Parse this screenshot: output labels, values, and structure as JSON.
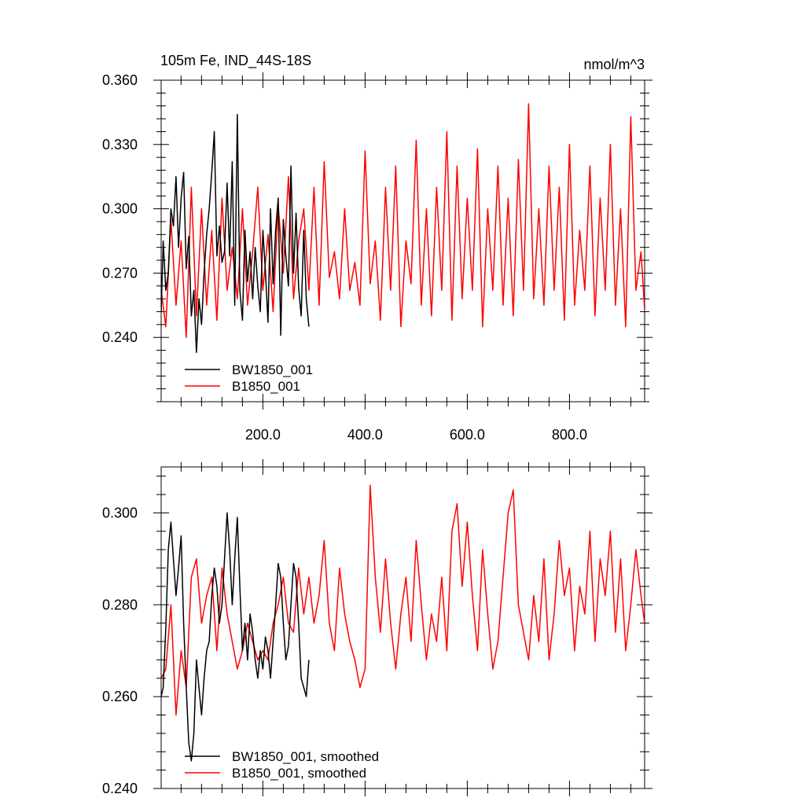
{
  "chart_data": [
    {
      "type": "line",
      "title": "105m Fe, IND_44S-18S",
      "units": "nmol/m^3",
      "xlim": [
        1,
        947
      ],
      "ylim": [
        0.21,
        0.36
      ],
      "xticks": [
        200,
        400,
        600,
        800
      ],
      "xtick_labels": [
        "200.0",
        "400.0",
        "600.0",
        "800.0"
      ],
      "yticks": [
        0.24,
        0.27,
        0.3,
        0.33,
        0.36
      ],
      "ytick_labels": [
        "0.240",
        "0.270",
        "0.300",
        "0.330",
        "0.360"
      ],
      "legend_position": "bottom-left",
      "series": [
        {
          "name": "BW1850_001",
          "color": "#000000",
          "x": [
            1,
            5,
            10,
            15,
            20,
            25,
            30,
            35,
            40,
            45,
            50,
            55,
            60,
            65,
            70,
            75,
            80,
            85,
            90,
            95,
            100,
            105,
            110,
            115,
            120,
            125,
            130,
            135,
            140,
            145,
            150,
            155,
            160,
            165,
            170,
            175,
            180,
            185,
            190,
            195,
            200,
            205,
            210,
            215,
            220,
            225,
            230,
            235,
            240,
            245,
            250,
            255,
            260,
            265,
            270,
            275,
            280,
            285,
            290
          ],
          "y": [
            0.252,
            0.285,
            0.262,
            0.27,
            0.3,
            0.292,
            0.315,
            0.282,
            0.305,
            0.317,
            0.272,
            0.287,
            0.25,
            0.262,
            0.233,
            0.258,
            0.246,
            0.27,
            0.288,
            0.3,
            0.317,
            0.336,
            0.278,
            0.292,
            0.275,
            0.28,
            0.312,
            0.278,
            0.322,
            0.255,
            0.344,
            0.262,
            0.248,
            0.29,
            0.266,
            0.28,
            0.258,
            0.282,
            0.264,
            0.252,
            0.29,
            0.271,
            0.247,
            0.3,
            0.265,
            0.29,
            0.305,
            0.241,
            0.295,
            0.278,
            0.264,
            0.32,
            0.27,
            0.298,
            0.263,
            0.25,
            0.29,
            0.258,
            0.245
          ]
        },
        {
          "name": "B1850_001",
          "color": "#ff0000",
          "x": [
            1,
            10,
            20,
            30,
            40,
            50,
            60,
            70,
            80,
            90,
            100,
            110,
            120,
            130,
            140,
            150,
            160,
            170,
            180,
            190,
            200,
            210,
            220,
            230,
            240,
            250,
            260,
            270,
            280,
            290,
            300,
            310,
            320,
            330,
            340,
            350,
            360,
            370,
            380,
            390,
            400,
            410,
            420,
            430,
            440,
            450,
            460,
            470,
            480,
            490,
            500,
            510,
            520,
            530,
            540,
            550,
            560,
            570,
            580,
            590,
            600,
            610,
            620,
            630,
            640,
            650,
            660,
            670,
            680,
            690,
            700,
            710,
            720,
            730,
            740,
            750,
            760,
            770,
            780,
            790,
            800,
            810,
            820,
            830,
            840,
            850,
            860,
            870,
            880,
            890,
            900,
            910,
            920,
            930,
            940,
            947
          ],
          "y": [
            0.262,
            0.245,
            0.295,
            0.255,
            0.285,
            0.24,
            0.31,
            0.25,
            0.3,
            0.255,
            0.29,
            0.248,
            0.305,
            0.262,
            0.282,
            0.258,
            0.3,
            0.255,
            0.28,
            0.31,
            0.262,
            0.288,
            0.252,
            0.302,
            0.27,
            0.315,
            0.258,
            0.285,
            0.3,
            0.262,
            0.31,
            0.255,
            0.322,
            0.268,
            0.28,
            0.258,
            0.3,
            0.262,
            0.275,
            0.255,
            0.327,
            0.265,
            0.285,
            0.248,
            0.31,
            0.262,
            0.32,
            0.245,
            0.285,
            0.265,
            0.332,
            0.255,
            0.3,
            0.25,
            0.31,
            0.262,
            0.336,
            0.248,
            0.32,
            0.258,
            0.305,
            0.262,
            0.328,
            0.245,
            0.3,
            0.262,
            0.32,
            0.255,
            0.305,
            0.25,
            0.323,
            0.262,
            0.349,
            0.258,
            0.3,
            0.255,
            0.32,
            0.262,
            0.31,
            0.248,
            0.33,
            0.255,
            0.29,
            0.262,
            0.32,
            0.25,
            0.305,
            0.262,
            0.33,
            0.255,
            0.3,
            0.245,
            0.343,
            0.262,
            0.28,
            0.253
          ]
        }
      ]
    },
    {
      "type": "line",
      "xlim": [
        1,
        947
      ],
      "ylim": [
        0.24,
        0.31
      ],
      "yticks": [
        0.24,
        0.26,
        0.28,
        0.3
      ],
      "ytick_labels": [
        "0.240",
        "0.260",
        "0.280",
        "0.300"
      ],
      "legend_position": "bottom-left",
      "series": [
        {
          "name": "BW1850_001, smoothed",
          "color": "#000000",
          "x": [
            1,
            5,
            10,
            15,
            20,
            25,
            30,
            35,
            40,
            45,
            50,
            55,
            60,
            65,
            70,
            75,
            80,
            85,
            90,
            95,
            100,
            105,
            110,
            115,
            120,
            125,
            130,
            135,
            140,
            145,
            150,
            155,
            160,
            165,
            170,
            175,
            180,
            185,
            190,
            195,
            200,
            205,
            210,
            215,
            220,
            225,
            230,
            235,
            240,
            245,
            250,
            255,
            260,
            265,
            270,
            275,
            280,
            285,
            290
          ],
          "y": [
            0.26,
            0.262,
            0.275,
            0.292,
            0.298,
            0.29,
            0.282,
            0.288,
            0.295,
            0.276,
            0.262,
            0.25,
            0.246,
            0.252,
            0.268,
            0.262,
            0.256,
            0.264,
            0.27,
            0.272,
            0.282,
            0.288,
            0.284,
            0.276,
            0.28,
            0.29,
            0.3,
            0.292,
            0.28,
            0.29,
            0.299,
            0.284,
            0.27,
            0.276,
            0.268,
            0.278,
            0.274,
            0.268,
            0.264,
            0.27,
            0.266,
            0.273,
            0.27,
            0.264,
            0.272,
            0.28,
            0.289,
            0.286,
            0.276,
            0.268,
            0.271,
            0.28,
            0.289,
            0.286,
            0.276,
            0.264,
            0.262,
            0.26,
            0.268
          ]
        },
        {
          "name": "B1850_001, smoothed",
          "color": "#ff0000",
          "x": [
            1,
            10,
            20,
            30,
            40,
            50,
            60,
            70,
            80,
            90,
            100,
            110,
            120,
            130,
            140,
            150,
            160,
            170,
            180,
            190,
            200,
            210,
            220,
            230,
            240,
            250,
            260,
            270,
            280,
            290,
            300,
            310,
            320,
            330,
            340,
            350,
            360,
            370,
            380,
            390,
            400,
            410,
            420,
            430,
            440,
            450,
            460,
            470,
            480,
            490,
            500,
            510,
            520,
            530,
            540,
            550,
            560,
            570,
            580,
            590,
            600,
            610,
            620,
            630,
            640,
            650,
            660,
            670,
            680,
            690,
            700,
            710,
            720,
            730,
            740,
            750,
            760,
            770,
            780,
            790,
            800,
            810,
            820,
            830,
            840,
            850,
            860,
            870,
            880,
            890,
            900,
            910,
            920,
            930,
            940,
            947
          ],
          "y": [
            0.264,
            0.266,
            0.28,
            0.256,
            0.27,
            0.262,
            0.286,
            0.29,
            0.276,
            0.282,
            0.286,
            0.27,
            0.288,
            0.278,
            0.272,
            0.266,
            0.27,
            0.276,
            0.272,
            0.268,
            0.27,
            0.268,
            0.276,
            0.28,
            0.286,
            0.276,
            0.274,
            0.288,
            0.278,
            0.286,
            0.276,
            0.282,
            0.294,
            0.276,
            0.27,
            0.288,
            0.278,
            0.272,
            0.268,
            0.262,
            0.266,
            0.306,
            0.286,
            0.274,
            0.29,
            0.276,
            0.266,
            0.278,
            0.286,
            0.272,
            0.294,
            0.28,
            0.268,
            0.278,
            0.272,
            0.286,
            0.27,
            0.296,
            0.302,
            0.284,
            0.298,
            0.282,
            0.27,
            0.292,
            0.278,
            0.266,
            0.272,
            0.286,
            0.3,
            0.305,
            0.28,
            0.274,
            0.268,
            0.282,
            0.272,
            0.29,
            0.268,
            0.278,
            0.294,
            0.282,
            0.288,
            0.27,
            0.284,
            0.278,
            0.296,
            0.272,
            0.29,
            0.282,
            0.296,
            0.274,
            0.29,
            0.27,
            0.28,
            0.292,
            0.282,
            0.276
          ]
        }
      ]
    }
  ]
}
